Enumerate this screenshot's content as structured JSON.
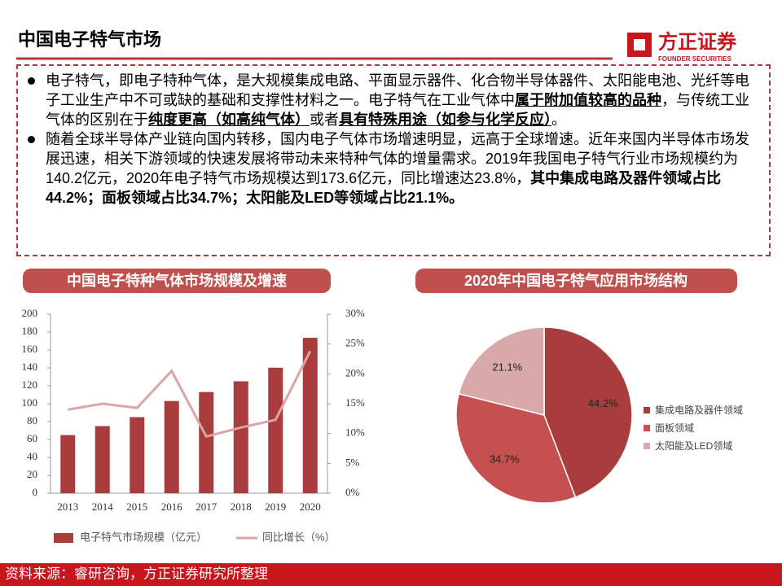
{
  "header": {
    "title": "中国电子特气市场",
    "logo": "方正证券",
    "logo_en": "FOUNDER SECURITIES"
  },
  "paragraphs": [
    {
      "segments": [
        {
          "text": "电子特气，即电子特种气体，是大规模集成电路、平面显示器件、化合物半导体器件、太阳能电池、光纤等电子工业生产中不可或缺的基础和支撑性材料之一。电子特气在工业气体中"
        },
        {
          "text": "属于附加值较高的品种",
          "bold": true,
          "underline": true
        },
        {
          "text": "，与传统工业气体的区别在于"
        },
        {
          "text": "纯度更高（如高纯气体）",
          "bold": true,
          "underline": true
        },
        {
          "text": "或者"
        },
        {
          "text": "具有特殊用途（如参与化学反应）",
          "bold": true,
          "underline": true
        },
        {
          "text": "。"
        }
      ]
    },
    {
      "segments": [
        {
          "text": "随着全球半导体产业链向国内转移，国内电子气体市场增速明显，远高于全球增速。近年来国内半导体市场发展迅速，相关下游领域的快速发展将带动未来特种气体的增量需求。2019年我国电子特气行业市场规模约为140.2亿元，2020年电子特气市场规模达到173.6亿元，同比增速达23.8%，"
        },
        {
          "text": "其中集成电路及器件领域占比44.2%；面板领域占比34.7%；太阳能及LED等领域占比21.1%。",
          "bold": true
        }
      ]
    }
  ],
  "chart_data": [
    {
      "type": "bar-line",
      "title": "中国电子特种气体市场规模及增速",
      "categories": [
        "2013",
        "2014",
        "2015",
        "2016",
        "2017",
        "2018",
        "2019",
        "2020"
      ],
      "series": [
        {
          "name": "电子特气市场规模（亿元）",
          "type": "bar",
          "color": "#a93c3c",
          "values": [
            65,
            75,
            85,
            103,
            113,
            125,
            140.2,
            173.6
          ]
        },
        {
          "name": "同比增长（%）",
          "type": "line",
          "axis": "y2",
          "color": "#d9a5a5",
          "values": [
            14,
            15,
            14.3,
            20.5,
            9.5,
            11,
            12.3,
            23.8
          ]
        }
      ],
      "ylim": [
        0,
        200
      ],
      "yticks": [
        0,
        20,
        40,
        60,
        80,
        100,
        120,
        140,
        160,
        180,
        200
      ],
      "y2lim": [
        0,
        30
      ],
      "y2ticks": [
        {
          "value": 0,
          "label": "0%"
        },
        {
          "value": 5,
          "label": "5%"
        },
        {
          "value": 10,
          "label": "10%"
        },
        {
          "value": 15,
          "label": "15%"
        },
        {
          "value": 20,
          "label": "20%"
        },
        {
          "value": 25,
          "label": "25%"
        },
        {
          "value": 30,
          "label": "30%"
        }
      ],
      "grid": false
    },
    {
      "type": "pie",
      "title": "2020年中国电子特气应用市场结构",
      "categories": [
        "集成电路及器件领域",
        "面板领域",
        "太阳能及LED领域"
      ],
      "values": [
        44.2,
        34.7,
        21.1
      ],
      "value_labels": [
        "44.2%",
        "34.7%",
        "21.1%"
      ],
      "colors": [
        "#a93c3c",
        "#c65050",
        "#d9a9a9"
      ]
    }
  ],
  "source": "资料来源：睿研咨询，方正证券研究所整理"
}
